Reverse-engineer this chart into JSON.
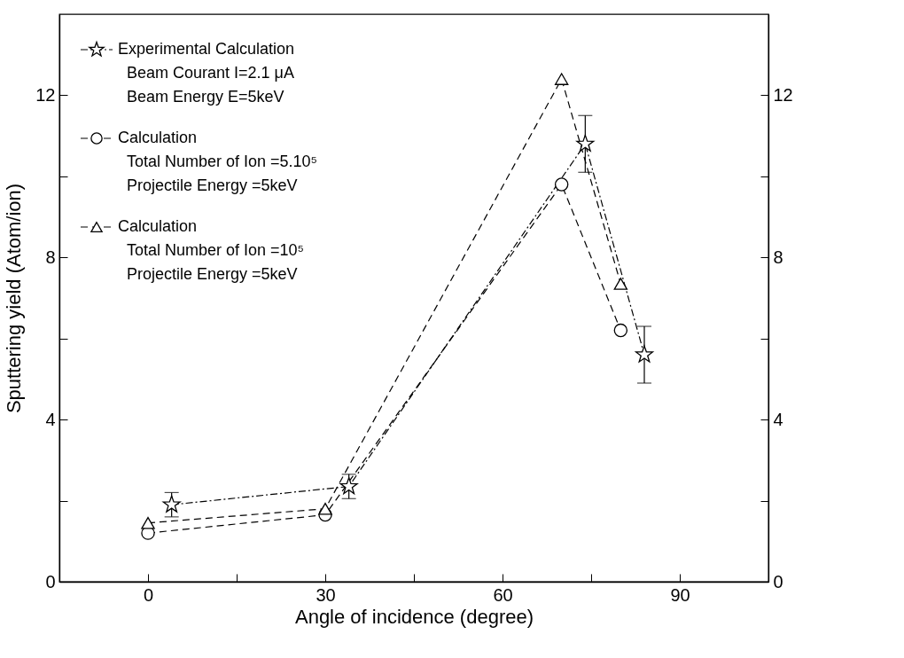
{
  "chart_data": {
    "type": "line",
    "xlabel": "Angle of incidence (degree)",
    "ylabel": "Sputtering yield (Atom/ion)",
    "xlim": [
      -15,
      105
    ],
    "xticks": [
      0,
      {
        "value": 15,
        "label": null
      },
      30,
      {
        "value": 45,
        "label": null
      },
      60,
      {
        "value": 75,
        "label": null
      },
      90
    ],
    "ylim": [
      0,
      14
    ],
    "yticks": [
      0,
      {
        "value": 2,
        "label": null
      },
      4,
      {
        "value": 6,
        "label": null
      },
      8,
      {
        "value": 10,
        "label": null
      },
      12
    ],
    "y2lim": [
      0,
      14
    ],
    "y2ticks": [
      0,
      {
        "value": 2,
        "label": null
      },
      4,
      {
        "value": 6,
        "label": null
      },
      8,
      {
        "value": 10,
        "label": null
      },
      12
    ],
    "legend": "top left",
    "grid": false,
    "series": [
      {
        "name": "Experimental Calculation",
        "color": "#000000",
        "marker": "star",
        "line_style": "dashdot",
        "x": [
          4,
          34,
          74,
          84
        ],
        "values": [
          1.9,
          2.35,
          10.8,
          5.6
        ],
        "errors": [
          0.3,
          0.3,
          0.7,
          0.7
        ]
      },
      {
        "name": "Calculation",
        "color": "#000000",
        "marker": "circle",
        "line_style": "dashed",
        "x": [
          0,
          30,
          70,
          80
        ],
        "values": [
          1.2,
          1.65,
          9.8,
          6.2
        ]
      },
      {
        "name": "Calculation",
        "color": "#000000",
        "marker": "triangle",
        "line_style": "dashed",
        "x": [
          0,
          30,
          70,
          80
        ],
        "values": [
          1.45,
          1.8,
          12.4,
          7.35
        ]
      }
    ],
    "annotations": [
      "Beam Courant I=2.1 μA",
      "Beam Energy E=5keV",
      "Total Number of Ion =5.10⁵",
      "Projectile Energy =5keV",
      "Total Number of Ion =10⁵",
      "Projectile Energy =5keV"
    ]
  }
}
